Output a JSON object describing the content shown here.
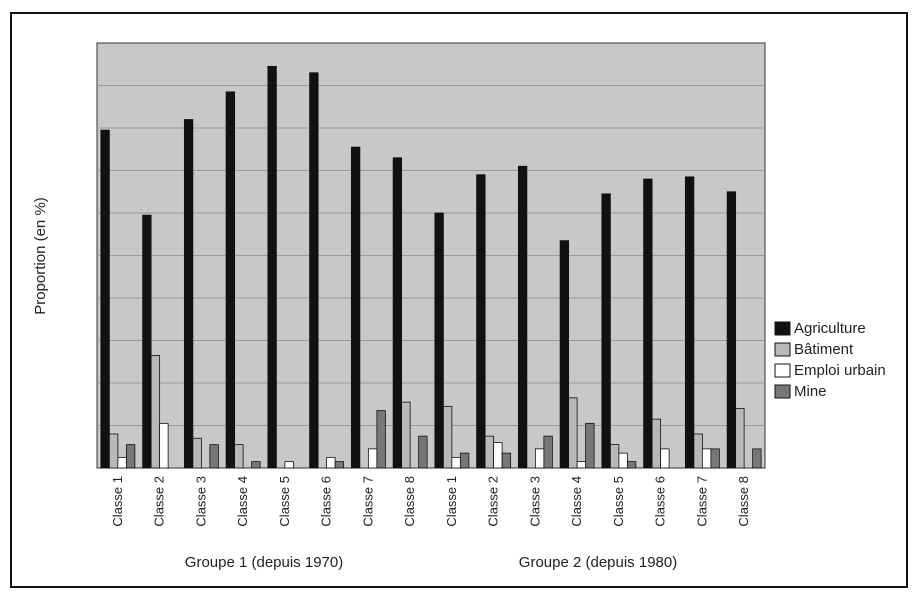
{
  "chart_data": {
    "type": "bar",
    "title": "",
    "ylabel": "Proportion (en %)",
    "xlabel": "",
    "ylim": [
      0,
      100
    ],
    "grid": true,
    "legend_position": "right",
    "categories": [
      "Classe 1",
      "Classe 2",
      "Classe 3",
      "Classe 4",
      "Classe 5",
      "Classe 6",
      "Classe 7",
      "Classe 8",
      "Classe 1",
      "Classe 2",
      "Classe 3",
      "Classe 4",
      "Classe 5",
      "Classe 6",
      "Classe 7",
      "Classe 8"
    ],
    "groups": [
      {
        "label": "Groupe 1 (depuis 1970)",
        "start": 0,
        "end": 7
      },
      {
        "label": "Groupe 2 (depuis 1980)",
        "start": 8,
        "end": 15
      }
    ],
    "series": [
      {
        "name": "Agriculture",
        "color": "#111111",
        "values": [
          79.5,
          59.5,
          82,
          88.5,
          94.5,
          93,
          75.5,
          73,
          60,
          69,
          71,
          53.5,
          64.5,
          68,
          68.5,
          65
        ]
      },
      {
        "name": "Bâtiment",
        "color": "#b8b8b8",
        "values": [
          8,
          26.5,
          7,
          5.5,
          0,
          0,
          0,
          15.5,
          14.5,
          7.5,
          0,
          16.5,
          5.5,
          11.5,
          8,
          14
        ]
      },
      {
        "name": "Emploi urbain",
        "color": "#ffffff",
        "values": [
          2.5,
          10.5,
          0,
          0,
          1.5,
          2.5,
          4.5,
          0,
          2.5,
          6,
          4.5,
          1.5,
          3.5,
          4.5,
          4.5,
          0
        ]
      },
      {
        "name": "Mine",
        "color": "#777777",
        "values": [
          5.5,
          0,
          5.5,
          1.5,
          0,
          1.5,
          13.5,
          7.5,
          3.5,
          3.5,
          7.5,
          10.5,
          1.5,
          0,
          4.5,
          4.5
        ]
      }
    ]
  }
}
